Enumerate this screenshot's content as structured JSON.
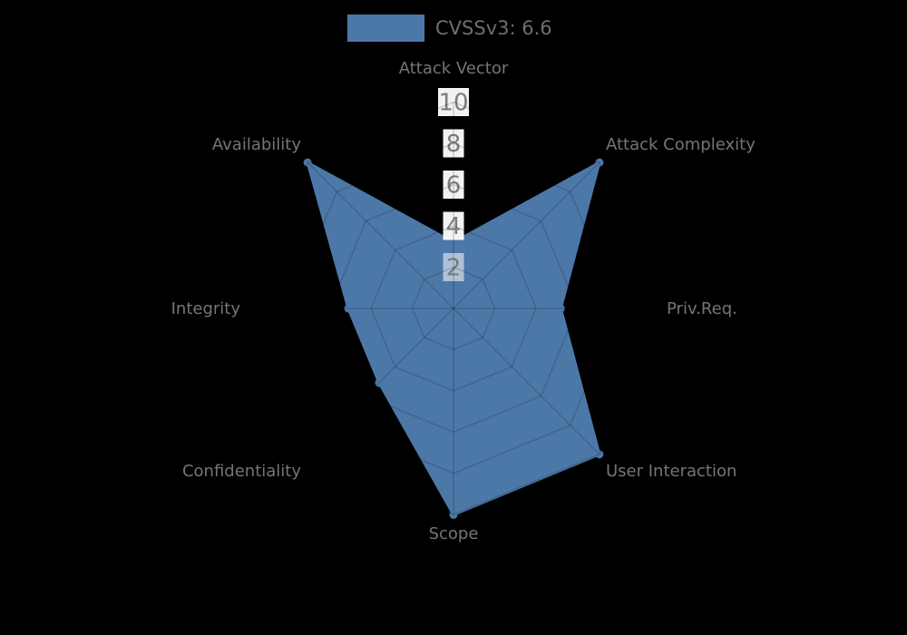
{
  "legend": {
    "label": "CVSSv3: 6.6"
  },
  "colors": {
    "primary": "#4c78a8",
    "background": "#000000",
    "grid_line": "rgba(0,0,0,0.16)",
    "axis_label_text": "#757575",
    "tick_text": "#7c7c7c",
    "tick_box": "#ffffff",
    "legend_text": "#6e6e6e"
  },
  "chart_data": {
    "type": "radar",
    "title": "",
    "categories": [
      "Attack Vector",
      "Attack Complexity",
      "Priv.Req.",
      "User Interaction",
      "Scope",
      "Confidentiality",
      "Integrity",
      "Availability"
    ],
    "series": [
      {
        "name": "CVSSv3: 6.6",
        "values": [
          3.2,
          10,
          5.2,
          10,
          10,
          5.1,
          5.1,
          10
        ]
      }
    ],
    "radial_ticks": [
      10,
      8,
      6,
      4,
      2
    ],
    "rlim": [
      0,
      10
    ],
    "grid": "polygonal-web",
    "legend_position": "top-center"
  }
}
